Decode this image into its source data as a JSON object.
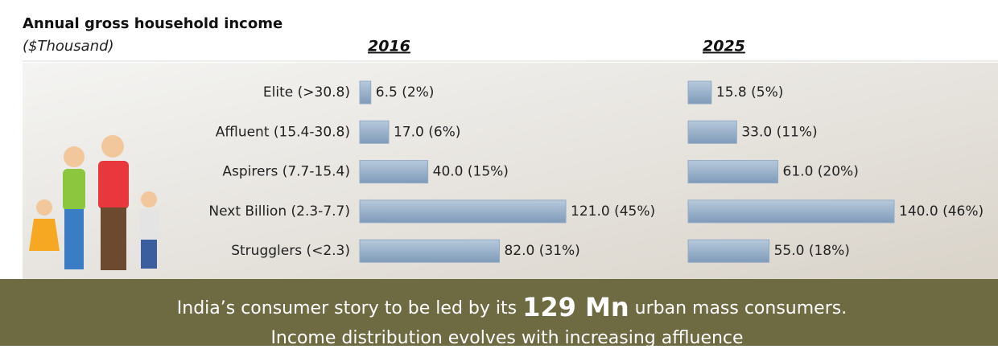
{
  "chart_data": {
    "type": "bar",
    "orientation": "horizontal",
    "title": "Annual gross household income",
    "subtitle": "($Thousand)",
    "categories": [
      "Elite (>30.8)",
      "Affluent (15.4-30.8)",
      "Aspirers (7.7-15.4)",
      "Next Billion (2.3-7.7)",
      "Strugglers (<2.3)"
    ],
    "series": [
      {
        "name": "2016",
        "color": "#93abc6",
        "xlim": [
          0,
          121
        ],
        "values": [
          6.5,
          17.0,
          40.0,
          121.0,
          82.0
        ],
        "value_labels": [
          "6.5 (2%)",
          "17.0 (6%)",
          "40.0 (15%)",
          "121.0 (45%)",
          "82.0 (31%)"
        ]
      },
      {
        "name": "2025",
        "color": "#93abc6",
        "xlim": [
          0,
          140
        ],
        "values": [
          15.8,
          33.0,
          61.0,
          140.0,
          55.0
        ],
        "value_labels": [
          "15.8 (5%)",
          "33.0 (11%)",
          "61.0 (20%)",
          "140.0 (46%)",
          "55.0 (18%)"
        ]
      }
    ]
  },
  "banner": {
    "line1_start": "India’s consumer story to be led by its",
    "highlight": "129 Mn",
    "line1_end": "urban mass consumers.",
    "line2": "Income distribution evolves with increasing affluence"
  }
}
